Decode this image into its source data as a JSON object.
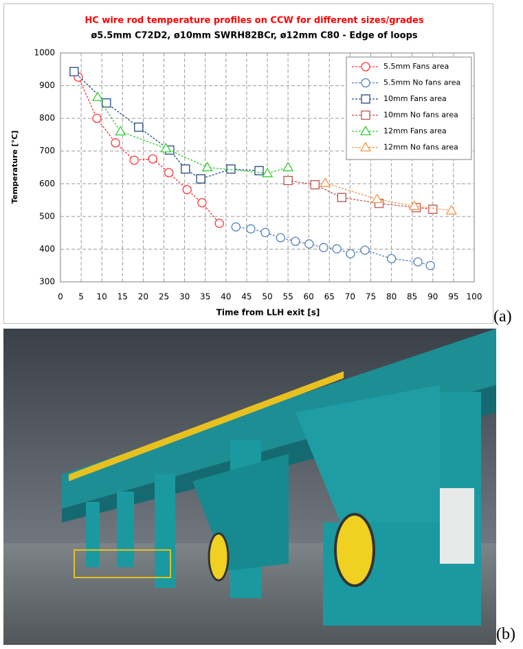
{
  "chart_data": {
    "type": "line",
    "title": "HC wire rod temperature profiles on CCW for different sizes/grades",
    "subtitle": "ø5.5mm C72D2, ø10mm SWRH82BCr, ø12mm C80 - Edge of loops",
    "x_label": "Time from LLH exit [s]",
    "y_label": "Temperature [°C]",
    "xlim": [
      0,
      100
    ],
    "xticks": [
      0,
      5,
      10,
      15,
      20,
      25,
      30,
      35,
      40,
      45,
      50,
      55,
      60,
      65,
      70,
      75,
      80,
      85,
      90,
      95,
      100
    ],
    "ylim": [
      300,
      1000
    ],
    "yticks": [
      300,
      400,
      500,
      600,
      700,
      800,
      900,
      1000
    ],
    "grid": true,
    "legend": "top-right",
    "series": [
      {
        "name": "5.5mm Fans area",
        "color": "#ff3333",
        "marker": "circle",
        "x": [
          4.3,
          8.8,
          13.3,
          17.8,
          22.3,
          26.2,
          30.6,
          34.2,
          38.4
        ],
        "values": [
          926,
          800,
          725,
          672,
          676,
          634,
          582,
          542,
          479
        ]
      },
      {
        "name": "5.5mm No fans area",
        "color": "#4f81bd",
        "marker": "circle",
        "x": [
          42.4,
          46,
          49.5,
          53.2,
          56.8,
          60.1,
          63.6,
          66.8,
          70.1,
          73.6,
          80,
          86.4,
          89.4
        ],
        "values": [
          468,
          462,
          451,
          435,
          424,
          416,
          405,
          401,
          386,
          397,
          371,
          361,
          350
        ]
      },
      {
        "name": "10mm Fans area",
        "color": "#1f497d",
        "marker": "square",
        "x": [
          3.3,
          11.1,
          18.9,
          26.4,
          30.2,
          33.9,
          41.2,
          48
        ],
        "values": [
          943,
          847,
          773,
          703,
          645,
          615,
          645,
          640
        ]
      },
      {
        "name": "10mm No fans area",
        "color": "#c0504d",
        "marker": "square",
        "x": [
          55,
          61.5,
          68,
          77,
          86,
          90
        ],
        "values": [
          610,
          597,
          558,
          540,
          527,
          522
        ]
      },
      {
        "name": "12mm Fans area",
        "color": "#33cc33",
        "marker": "triangle",
        "x": [
          9,
          14.5,
          25.5,
          35.5,
          50,
          55
        ],
        "values": [
          865,
          760,
          708,
          650,
          632,
          650
        ]
      },
      {
        "name": "12mm No fans area",
        "color": "#f79646",
        "marker": "triangle",
        "x": [
          64,
          76.5,
          85.5,
          94.5
        ],
        "values": [
          602,
          553,
          532,
          518
        ]
      }
    ]
  },
  "panel_labels": [
    "(a)",
    "(b)"
  ]
}
